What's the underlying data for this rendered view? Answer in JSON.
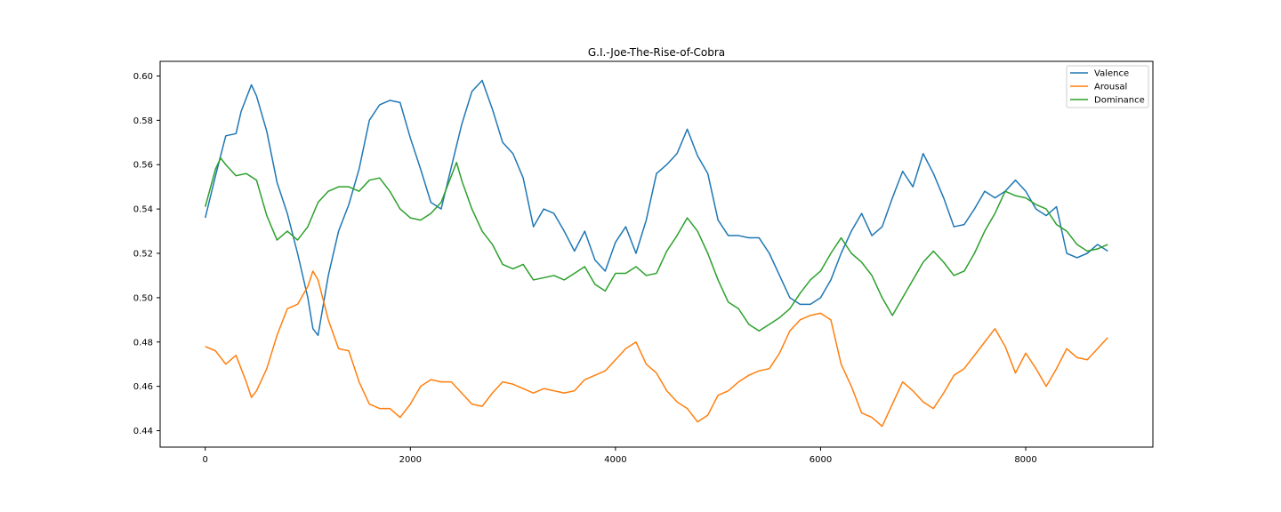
{
  "chart_data": {
    "type": "line",
    "title": "G.I.-Joe-The-Rise-of-Cobra",
    "xlabel": "",
    "ylabel": "",
    "xlim": [
      -440,
      9240
    ],
    "ylim": [
      0.4326,
      0.6066
    ],
    "x_ticks": [
      0,
      2000,
      4000,
      6000,
      8000
    ],
    "y_ticks": [
      0.44,
      0.46,
      0.48,
      0.5,
      0.52,
      0.54,
      0.56,
      0.58,
      0.6
    ],
    "y_tick_labels": [
      "0.44",
      "0.46",
      "0.48",
      "0.50",
      "0.52",
      "0.54",
      "0.56",
      "0.58",
      "0.60"
    ],
    "x_tick_labels": [
      "0",
      "2000",
      "4000",
      "6000",
      "8000"
    ],
    "legend_position": "top-right",
    "grid": false,
    "series": [
      {
        "name": "Valence",
        "color": "#1f77b4",
        "x": [
          0,
          100,
          200,
          300,
          350,
          450,
          500,
          600,
          700,
          800,
          900,
          1000,
          1050,
          1100,
          1200,
          1300,
          1400,
          1500,
          1600,
          1700,
          1800,
          1900,
          2000,
          2100,
          2200,
          2300,
          2400,
          2500,
          2600,
          2700,
          2800,
          2900,
          3000,
          3100,
          3200,
          3300,
          3400,
          3500,
          3600,
          3700,
          3800,
          3900,
          4000,
          4100,
          4200,
          4300,
          4400,
          4500,
          4600,
          4700,
          4800,
          4900,
          5000,
          5100,
          5200,
          5300,
          5400,
          5500,
          5600,
          5700,
          5800,
          5900,
          6000,
          6100,
          6200,
          6300,
          6400,
          6500,
          6600,
          6700,
          6800,
          6900,
          7000,
          7100,
          7200,
          7300,
          7400,
          7500,
          7600,
          7700,
          7800,
          7900,
          8000,
          8100,
          8200,
          8300,
          8400,
          8500,
          8600,
          8700,
          8800
        ],
        "values": [
          0.536,
          0.555,
          0.573,
          0.574,
          0.584,
          0.596,
          0.591,
          0.575,
          0.552,
          0.538,
          0.52,
          0.5,
          0.486,
          0.483,
          0.51,
          0.53,
          0.542,
          0.558,
          0.58,
          0.587,
          0.589,
          0.588,
          0.572,
          0.558,
          0.543,
          0.54,
          0.559,
          0.578,
          0.593,
          0.598,
          0.585,
          0.57,
          0.565,
          0.554,
          0.532,
          0.54,
          0.538,
          0.53,
          0.521,
          0.53,
          0.517,
          0.512,
          0.525,
          0.532,
          0.52,
          0.535,
          0.556,
          0.56,
          0.565,
          0.576,
          0.564,
          0.556,
          0.535,
          0.528,
          0.528,
          0.527,
          0.527,
          0.52,
          0.51,
          0.5,
          0.497,
          0.497,
          0.5,
          0.508,
          0.52,
          0.53,
          0.538,
          0.528,
          0.532,
          0.545,
          0.557,
          0.55,
          0.565,
          0.556,
          0.545,
          0.532,
          0.533,
          0.54,
          0.548,
          0.545,
          0.548,
          0.553,
          0.548,
          0.54,
          0.537,
          0.541,
          0.52,
          0.518,
          0.52,
          0.524,
          0.521
        ]
      },
      {
        "name": "Arousal",
        "color": "#ff7f0e",
        "x": [
          0,
          100,
          200,
          300,
          400,
          450,
          500,
          600,
          700,
          800,
          900,
          1000,
          1050,
          1100,
          1200,
          1300,
          1400,
          1500,
          1600,
          1700,
          1800,
          1900,
          2000,
          2100,
          2200,
          2300,
          2400,
          2500,
          2600,
          2700,
          2800,
          2900,
          3000,
          3100,
          3200,
          3300,
          3400,
          3500,
          3600,
          3700,
          3800,
          3900,
          4000,
          4100,
          4200,
          4300,
          4400,
          4500,
          4600,
          4700,
          4800,
          4900,
          5000,
          5100,
          5200,
          5300,
          5400,
          5500,
          5600,
          5700,
          5800,
          5900,
          6000,
          6100,
          6200,
          6300,
          6400,
          6500,
          6600,
          6700,
          6800,
          6900,
          7000,
          7100,
          7200,
          7300,
          7400,
          7500,
          7600,
          7700,
          7800,
          7900,
          8000,
          8100,
          8200,
          8300,
          8400,
          8500,
          8600,
          8700,
          8800
        ],
        "values": [
          0.478,
          0.476,
          0.47,
          0.474,
          0.462,
          0.455,
          0.458,
          0.468,
          0.483,
          0.495,
          0.497,
          0.505,
          0.512,
          0.508,
          0.49,
          0.477,
          0.476,
          0.462,
          0.452,
          0.45,
          0.45,
          0.446,
          0.452,
          0.46,
          0.463,
          0.462,
          0.462,
          0.457,
          0.452,
          0.451,
          0.457,
          0.462,
          0.461,
          0.459,
          0.457,
          0.459,
          0.458,
          0.457,
          0.458,
          0.463,
          0.465,
          0.467,
          0.472,
          0.477,
          0.48,
          0.47,
          0.466,
          0.458,
          0.453,
          0.45,
          0.444,
          0.447,
          0.456,
          0.458,
          0.462,
          0.465,
          0.467,
          0.468,
          0.475,
          0.485,
          0.49,
          0.492,
          0.493,
          0.49,
          0.47,
          0.46,
          0.448,
          0.446,
          0.442,
          0.452,
          0.462,
          0.458,
          0.453,
          0.45,
          0.457,
          0.465,
          0.468,
          0.474,
          0.48,
          0.486,
          0.478,
          0.466,
          0.475,
          0.468,
          0.46,
          0.468,
          0.477,
          0.473,
          0.472,
          0.477,
          0.482
        ]
      },
      {
        "name": "Dominance",
        "color": "#2ca02c",
        "x": [
          0,
          100,
          150,
          200,
          300,
          400,
          500,
          600,
          700,
          800,
          900,
          1000,
          1100,
          1200,
          1300,
          1400,
          1500,
          1600,
          1700,
          1800,
          1900,
          2000,
          2100,
          2200,
          2300,
          2400,
          2450,
          2500,
          2600,
          2700,
          2800,
          2900,
          3000,
          3100,
          3200,
          3300,
          3400,
          3500,
          3600,
          3700,
          3800,
          3900,
          4000,
          4100,
          4200,
          4300,
          4400,
          4500,
          4600,
          4700,
          4800,
          4900,
          5000,
          5100,
          5200,
          5300,
          5400,
          5500,
          5600,
          5700,
          5800,
          5900,
          6000,
          6100,
          6200,
          6300,
          6400,
          6500,
          6600,
          6700,
          6800,
          6900,
          7000,
          7100,
          7200,
          7300,
          7400,
          7500,
          7600,
          7700,
          7800,
          7900,
          8000,
          8100,
          8200,
          8300,
          8400,
          8500,
          8600,
          8700,
          8800
        ],
        "values": [
          0.541,
          0.558,
          0.563,
          0.56,
          0.555,
          0.556,
          0.553,
          0.537,
          0.526,
          0.53,
          0.526,
          0.532,
          0.543,
          0.548,
          0.55,
          0.55,
          0.548,
          0.553,
          0.554,
          0.548,
          0.54,
          0.536,
          0.535,
          0.538,
          0.543,
          0.555,
          0.561,
          0.553,
          0.54,
          0.53,
          0.524,
          0.515,
          0.513,
          0.515,
          0.508,
          0.509,
          0.51,
          0.508,
          0.511,
          0.514,
          0.506,
          0.503,
          0.511,
          0.511,
          0.514,
          0.51,
          0.511,
          0.521,
          0.528,
          0.536,
          0.53,
          0.52,
          0.508,
          0.498,
          0.495,
          0.488,
          0.485,
          0.488,
          0.491,
          0.495,
          0.502,
          0.508,
          0.512,
          0.52,
          0.527,
          0.52,
          0.516,
          0.51,
          0.5,
          0.492,
          0.5,
          0.508,
          0.516,
          0.521,
          0.516,
          0.51,
          0.512,
          0.52,
          0.53,
          0.538,
          0.548,
          0.546,
          0.545,
          0.542,
          0.54,
          0.533,
          0.53,
          0.524,
          0.521,
          0.522,
          0.524
        ]
      }
    ]
  }
}
